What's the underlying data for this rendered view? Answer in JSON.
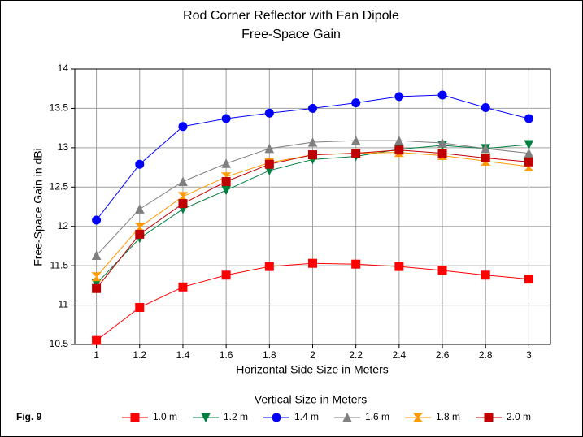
{
  "chart_data": {
    "type": "line",
    "title": "Rod Corner Reflector with Fan Dipole",
    "subtitle": "Free-Space Gain",
    "x_label": "Horizontal Side Size in Meters",
    "y_label": "Free-Space Gain in dBi",
    "legend_title": "Vertical Size in Meters",
    "figure_label": "Fig. 9",
    "x": [
      1,
      1.2,
      1.4,
      1.6,
      1.8,
      2,
      2.2,
      2.4,
      2.6,
      2.8,
      3
    ],
    "xlim": [
      0.9,
      3.1
    ],
    "xticks": [
      1,
      1.2,
      1.4,
      1.6,
      1.8,
      2,
      2.2,
      2.4,
      2.6,
      2.8,
      3
    ],
    "ylim": [
      10.5,
      14
    ],
    "yticks": [
      10.5,
      11,
      11.5,
      12,
      12.5,
      13,
      13.5,
      14
    ],
    "grid": true,
    "legend": "bottom",
    "series": [
      {
        "name": "1.0 m",
        "color": "#ff0000",
        "marker": "square",
        "values": [
          10.55,
          10.97,
          11.23,
          11.38,
          11.49,
          11.53,
          11.52,
          11.49,
          11.44,
          11.38,
          11.33
        ]
      },
      {
        "name": "1.2 m",
        "color": "#008040",
        "marker": "triangle-down",
        "values": [
          11.27,
          11.85,
          12.22,
          12.46,
          12.71,
          12.85,
          12.89,
          12.98,
          13.03,
          12.99,
          13.04
        ]
      },
      {
        "name": "1.4 m",
        "color": "#0000ff",
        "marker": "circle",
        "values": [
          12.08,
          12.79,
          13.27,
          13.37,
          13.44,
          13.5,
          13.57,
          13.65,
          13.67,
          13.51,
          13.37
        ]
      },
      {
        "name": "1.6 m",
        "color": "#808080",
        "marker": "triangle-up",
        "values": [
          11.63,
          12.22,
          12.57,
          12.8,
          12.99,
          13.07,
          13.09,
          13.09,
          13.06,
          12.99,
          12.93
        ]
      },
      {
        "name": "1.8 m",
        "color": "#ff9900",
        "marker": "hourglass",
        "values": [
          11.36,
          11.99,
          12.38,
          12.63,
          12.81,
          12.91,
          12.93,
          12.94,
          12.9,
          12.83,
          12.76
        ]
      },
      {
        "name": "2.0 m",
        "color": "#c00000",
        "marker": "square",
        "values": [
          11.21,
          11.9,
          12.29,
          12.57,
          12.79,
          12.91,
          12.93,
          12.97,
          12.93,
          12.87,
          12.82
        ]
      }
    ]
  }
}
